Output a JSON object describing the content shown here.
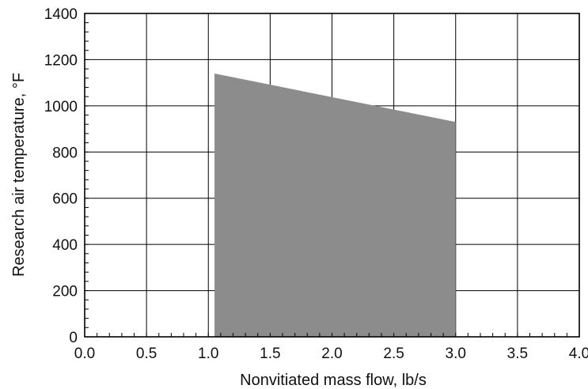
{
  "chart_data": {
    "type": "area",
    "xlabel": "Nonvitiated mass flow, lb/s",
    "ylabel": "Research air temperature, °F",
    "xlim": [
      0,
      4
    ],
    "ylim": [
      0,
      1400
    ],
    "x_ticks": [
      "0.0",
      "0.5",
      "1.0",
      "1.5",
      "2.0",
      "2.5",
      "3.0",
      "3.5",
      "4.0"
    ],
    "y_ticks": [
      "0",
      "200",
      "400",
      "600",
      "800",
      "1000",
      "1200",
      "1400"
    ],
    "grid": true,
    "region": {
      "x": [
        1.05,
        3.0
      ],
      "y_top": [
        1140,
        930
      ],
      "y_bottom": [
        0,
        0
      ],
      "color": "#8c8c8c"
    }
  }
}
